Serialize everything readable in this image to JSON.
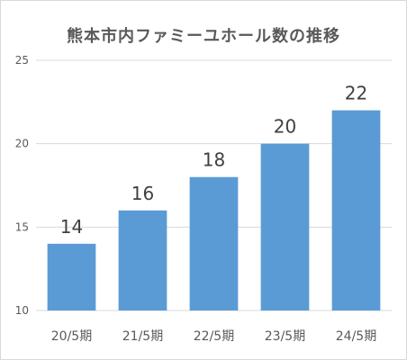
{
  "chart_data": {
    "type": "bar",
    "title": "熊本市内ファミーユホール数の推移",
    "categories": [
      "20/5期",
      "21/5期",
      "22/5期",
      "23/5期",
      "24/5期"
    ],
    "series": [
      {
        "values": [
          14,
          16,
          18,
          20,
          22
        ]
      }
    ],
    "data_labels": [
      "14",
      "16",
      "18",
      "20",
      "22"
    ],
    "y_ticks": [
      "10",
      "15",
      "20",
      "25"
    ],
    "ylim": [
      10,
      25
    ],
    "xlabel": "",
    "ylabel": "",
    "grid": true,
    "legend": "none",
    "colors": {
      "bar": "#5b9bd5",
      "grid": "#d9d9d9",
      "text": "#595959"
    }
  }
}
